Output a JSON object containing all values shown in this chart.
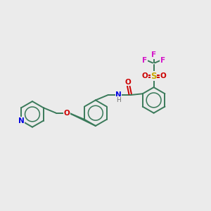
{
  "bg_color": "#ebebeb",
  "bond_color": "#3a7a5a",
  "N_color": "#0000e0",
  "O_color": "#cc0000",
  "S_color": "#c8a800",
  "F_color": "#d414c8",
  "H_color": "#707070",
  "line_width": 1.4,
  "font_size": 7.5,
  "fig_size": [
    3.0,
    3.0
  ],
  "dpi": 100,
  "xlim": [
    0,
    12
  ],
  "ylim": [
    0,
    12
  ]
}
